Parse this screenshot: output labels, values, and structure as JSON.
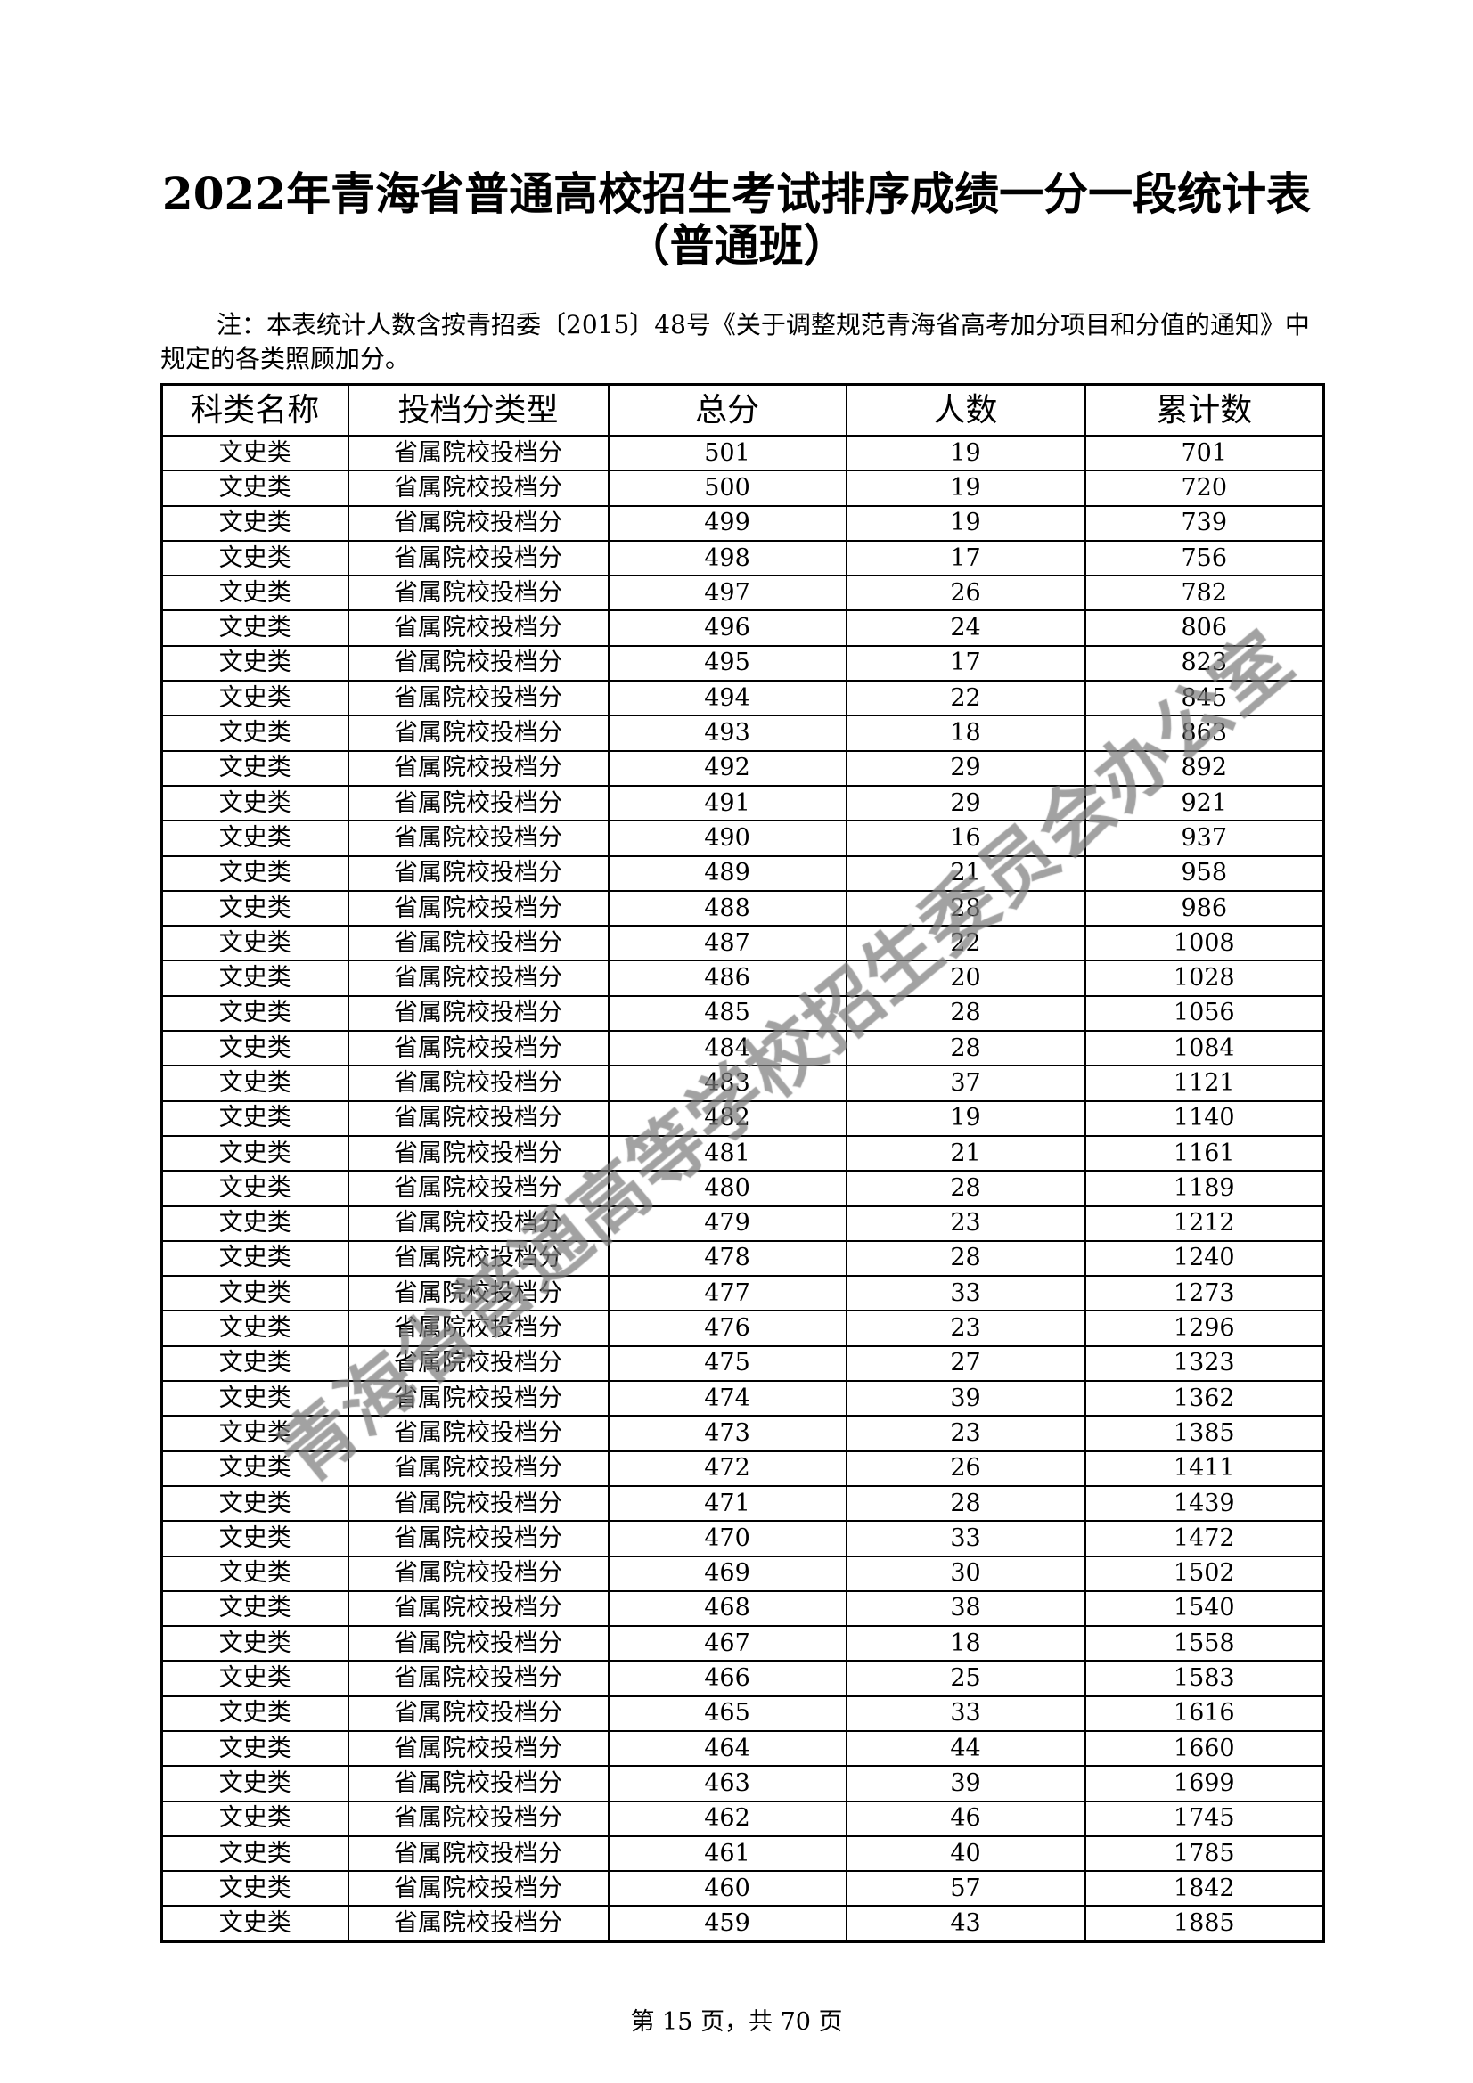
{
  "title_line1": "2022年青海省普通高校招生考试排序成绩一分一段统计表",
  "title_line2": "（普通班）",
  "note": "注：本表统计人数含按青招委〔2015〕48号《关于调整规范青海省高考加分项目和分值的通知》中规定的各类照顾加分。",
  "table": {
    "headers": [
      "科类名称",
      "投档分类型",
      "总分",
      "人数",
      "累计数"
    ],
    "category": "文史类",
    "score_type": "省属院校投档分",
    "rows": [
      [
        501,
        19,
        701
      ],
      [
        500,
        19,
        720
      ],
      [
        499,
        19,
        739
      ],
      [
        498,
        17,
        756
      ],
      [
        497,
        26,
        782
      ],
      [
        496,
        24,
        806
      ],
      [
        495,
        17,
        823
      ],
      [
        494,
        22,
        845
      ],
      [
        493,
        18,
        863
      ],
      [
        492,
        29,
        892
      ],
      [
        491,
        29,
        921
      ],
      [
        490,
        16,
        937
      ],
      [
        489,
        21,
        958
      ],
      [
        488,
        28,
        986
      ],
      [
        487,
        22,
        1008
      ],
      [
        486,
        20,
        1028
      ],
      [
        485,
        28,
        1056
      ],
      [
        484,
        28,
        1084
      ],
      [
        483,
        37,
        1121
      ],
      [
        482,
        19,
        1140
      ],
      [
        481,
        21,
        1161
      ],
      [
        480,
        28,
        1189
      ],
      [
        479,
        23,
        1212
      ],
      [
        478,
        28,
        1240
      ],
      [
        477,
        33,
        1273
      ],
      [
        476,
        23,
        1296
      ],
      [
        475,
        27,
        1323
      ],
      [
        474,
        39,
        1362
      ],
      [
        473,
        23,
        1385
      ],
      [
        472,
        26,
        1411
      ],
      [
        471,
        28,
        1439
      ],
      [
        470,
        33,
        1472
      ],
      [
        469,
        30,
        1502
      ],
      [
        468,
        38,
        1540
      ],
      [
        467,
        18,
        1558
      ],
      [
        466,
        25,
        1583
      ],
      [
        465,
        33,
        1616
      ],
      [
        464,
        44,
        1660
      ],
      [
        463,
        39,
        1699
      ],
      [
        462,
        46,
        1745
      ],
      [
        461,
        40,
        1785
      ],
      [
        460,
        57,
        1842
      ],
      [
        459,
        43,
        1885
      ]
    ]
  },
  "watermark": "青海省普通高等学校招生委员会办公室",
  "watermark_color": "#7a7a7a",
  "footer": "第 15 页，共 70 页"
}
